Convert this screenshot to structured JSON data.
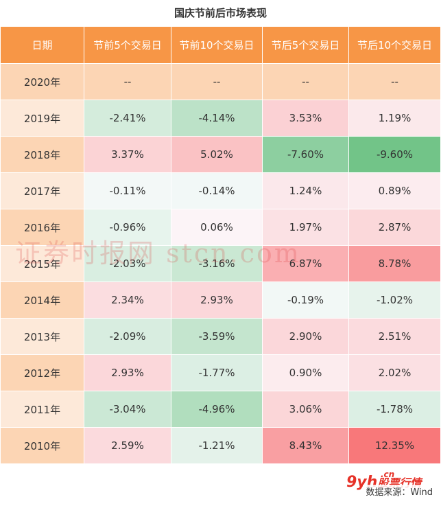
{
  "title": "国庆节前后市场表现",
  "columns": [
    "日期",
    "节前5个交易日",
    "节前10个交易日",
    "节后5个交易日",
    "节后10个交易日"
  ],
  "rows": [
    {
      "year": "2020年",
      "cells": [
        "--",
        "--",
        "--",
        "--"
      ]
    },
    {
      "year": "2019年",
      "cells": [
        "-2.41%",
        "-4.14%",
        "3.53%",
        "1.19%"
      ]
    },
    {
      "year": "2018年",
      "cells": [
        "3.37%",
        "5.02%",
        "-7.60%",
        "-9.60%"
      ]
    },
    {
      "year": "2017年",
      "cells": [
        "-0.11%",
        "-0.14%",
        "1.24%",
        "0.89%"
      ]
    },
    {
      "year": "2016年",
      "cells": [
        "-0.96%",
        "0.06%",
        "1.97%",
        "2.87%"
      ]
    },
    {
      "year": "2015年",
      "cells": [
        "-2.03%",
        "-3.16%",
        "6.87%",
        "8.78%"
      ]
    },
    {
      "year": "2014年",
      "cells": [
        "2.34%",
        "2.93%",
        "-0.19%",
        "-1.02%"
      ]
    },
    {
      "year": "2013年",
      "cells": [
        "-2.09%",
        "-3.59%",
        "2.90%",
        "2.51%"
      ]
    },
    {
      "year": "2012年",
      "cells": [
        "2.93%",
        "-1.77%",
        "0.90%",
        "2.02%"
      ]
    },
    {
      "year": "2011年",
      "cells": [
        "-3.04%",
        "-4.96%",
        "3.06%",
        "-1.78%"
      ]
    },
    {
      "year": "2010年",
      "cells": [
        "2.59%",
        "-1.21%",
        "8.43%",
        "12.35%"
      ]
    }
  ],
  "chart_data": {
    "type": "table",
    "title": "国庆节前后市场表现",
    "columns": [
      "日期",
      "节前5个交易日",
      "节前10个交易日",
      "节后5个交易日",
      "节后10个交易日"
    ],
    "rows": [
      [
        "2020年",
        null,
        null,
        null,
        null
      ],
      [
        "2019年",
        -2.41,
        -4.14,
        3.53,
        1.19
      ],
      [
        "2018年",
        3.37,
        5.02,
        -7.6,
        -9.6
      ],
      [
        "2017年",
        -0.11,
        -0.14,
        1.24,
        0.89
      ],
      [
        "2016年",
        -0.96,
        0.06,
        1.97,
        2.87
      ],
      [
        "2015年",
        -2.03,
        -3.16,
        6.87,
        8.78
      ],
      [
        "2014年",
        2.34,
        2.93,
        -0.19,
        -1.02
      ],
      [
        "2013年",
        -2.09,
        -3.59,
        2.9,
        2.51
      ],
      [
        "2012年",
        2.93,
        -1.77,
        0.9,
        2.02
      ],
      [
        "2011年",
        -3.04,
        -4.96,
        3.06,
        -1.78
      ],
      [
        "2010年",
        2.59,
        -1.21,
        8.43,
        12.35
      ]
    ],
    "color_scale": {
      "positive": "#f8696b",
      "negative": "#63be7b",
      "neutral": "#fcfcff",
      "header": "#f79646"
    }
  },
  "watermark": "证券时报网  stcn.com",
  "source_text": "数据来源：Wind",
  "logo": {
    "mark": "9yh",
    "domain": ".cn",
    "name": "股票行情"
  }
}
